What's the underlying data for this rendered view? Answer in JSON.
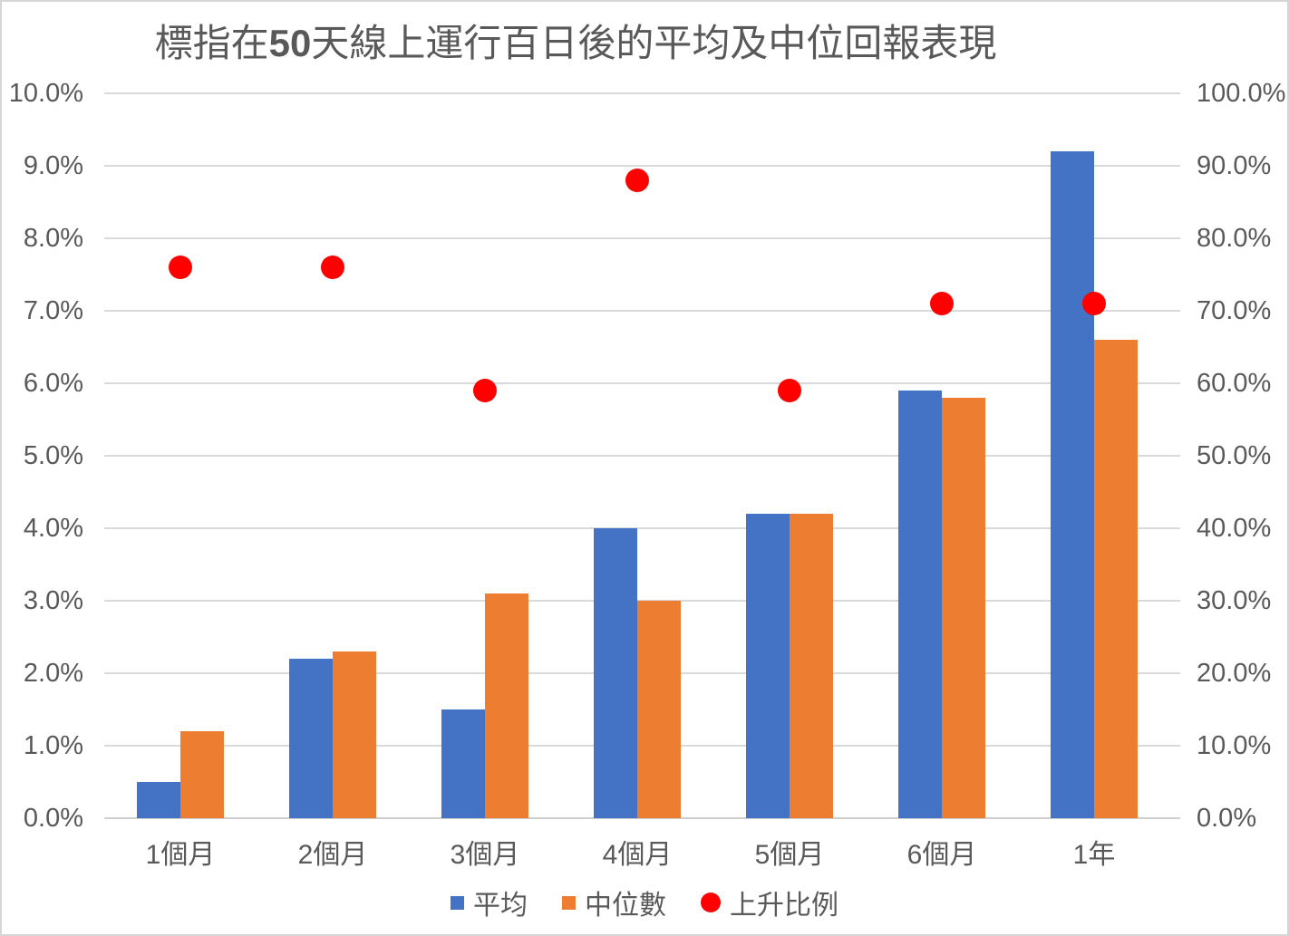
{
  "title": {
    "prefix": "標指在",
    "highlight": "50",
    "suffix": "天線上運行百日後的平均及中位回報表現"
  },
  "chart_data": {
    "type": "bar",
    "title": "標指在50天線上運行百日後的平均及中位回報表現",
    "categories": [
      "1個月",
      "2個月",
      "3個月",
      "4個月",
      "5個月",
      "6個月",
      "1年"
    ],
    "series": [
      {
        "key": "average",
        "name": "平均",
        "type": "bar",
        "axis": "left",
        "color": "#4472C4",
        "values": [
          0.5,
          2.2,
          1.5,
          4.0,
          4.2,
          5.9,
          9.2
        ],
        "unit": "%"
      },
      {
        "key": "median",
        "name": "中位數",
        "type": "bar",
        "axis": "left",
        "color": "#ED7D31",
        "values": [
          1.2,
          2.3,
          3.1,
          3.0,
          4.2,
          5.8,
          6.6
        ],
        "unit": "%"
      },
      {
        "key": "up-ratio",
        "name": "上升比例",
        "type": "scatter",
        "axis": "right",
        "color": "#FF0000",
        "values": [
          76,
          76,
          59,
          88,
          59,
          71,
          71
        ],
        "unit": "%"
      }
    ],
    "left_axis": {
      "min": 0,
      "max": 10,
      "step": 1,
      "tick_labels": [
        "0.0%",
        "1.0%",
        "2.0%",
        "3.0%",
        "4.0%",
        "5.0%",
        "6.0%",
        "7.0%",
        "8.0%",
        "9.0%",
        "10.0%"
      ]
    },
    "right_axis": {
      "min": 0,
      "max": 100,
      "step": 10,
      "tick_labels": [
        "0.0%",
        "10.0%",
        "20.0%",
        "30.0%",
        "40.0%",
        "50.0%",
        "60.0%",
        "70.0%",
        "80.0%",
        "90.0%",
        "100.0%"
      ]
    },
    "grid": true,
    "legend_position": "bottom"
  },
  "colors": {
    "background": "#FFFFFF",
    "border": "#D6D6D6",
    "gridline": "#D9D9D9",
    "axis_line": "#CFCFCF",
    "text": "#595959"
  }
}
